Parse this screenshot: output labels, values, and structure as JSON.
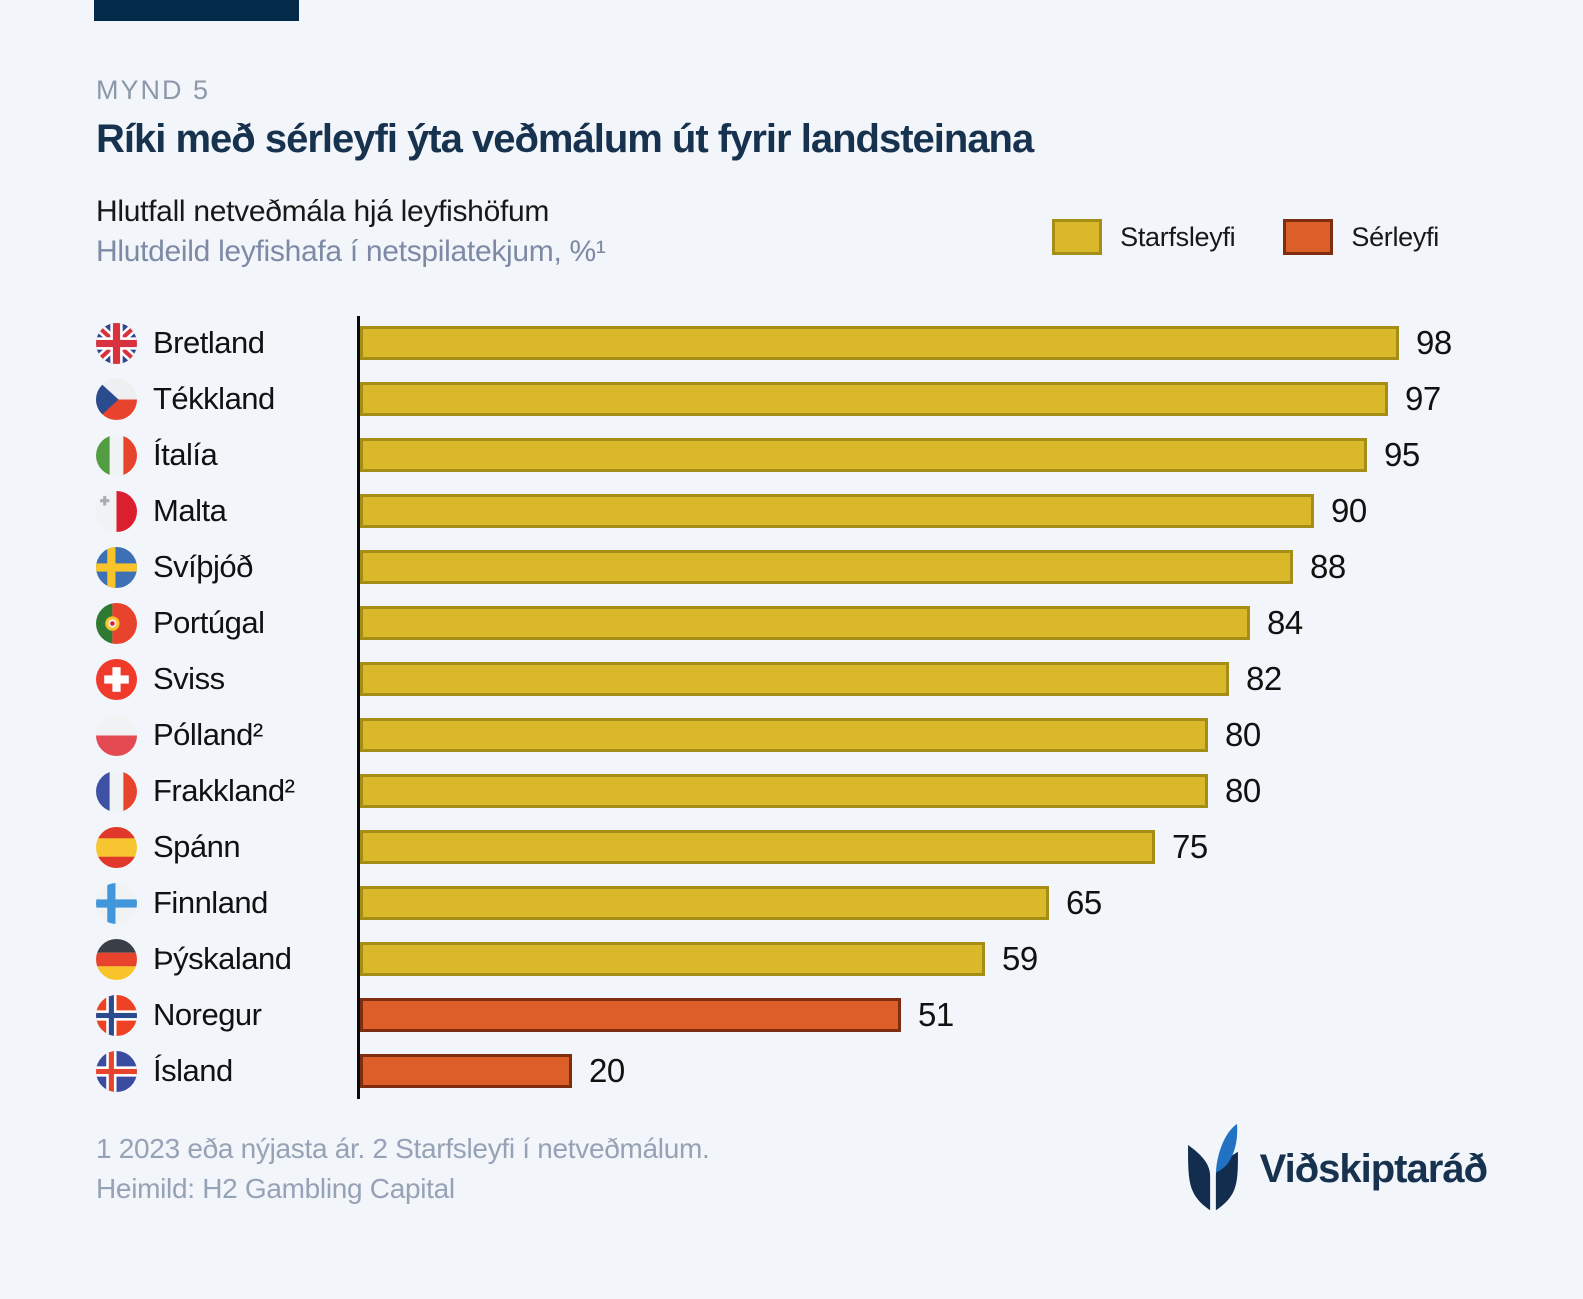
{
  "header": {
    "kicker": "MYND 5",
    "title": "Ríki með sérleyfi ýta veðmálum út fyrir landsteinana",
    "subtitle_primary": "Hlutfall netveðmála hjá leyfishöfum",
    "subtitle_secondary": "Hlutdeild leyfishafa í netspilatekjum, %¹"
  },
  "legend": [
    {
      "label": "Starfsleyfi",
      "series": "starfsleyfi",
      "fill": "#D9B929",
      "border": "#A58E18"
    },
    {
      "label": "Sérleyfi",
      "series": "serleyfi",
      "fill": "#DC5E28",
      "border": "#7E2D10"
    }
  ],
  "chart_data": {
    "type": "bar",
    "orientation": "horizontal",
    "unit": "%",
    "xlim": [
      0,
      100
    ],
    "title": "Ríki með sérleyfi ýta veðmálum út fyrir landsteinana",
    "subtitle": "Hlutdeild leyfishafa í netspilatekjum, %",
    "categories": [
      "Bretland",
      "Tékkland",
      "Ítalía",
      "Malta",
      "Svíþjóð",
      "Portúgal",
      "Sviss",
      "Pólland²",
      "Frakkland²",
      "Spánn",
      "Finnland",
      "Þýskaland",
      "Noregur",
      "Ísland"
    ],
    "values": [
      98,
      97,
      95,
      90,
      88,
      84,
      82,
      80,
      80,
      75,
      65,
      59,
      51,
      20
    ],
    "rows": [
      {
        "country": "Bretland",
        "flag": "gb",
        "value": 98,
        "series": "starfsleyfi"
      },
      {
        "country": "Tékkland",
        "flag": "cz",
        "value": 97,
        "series": "starfsleyfi"
      },
      {
        "country": "Ítalía",
        "flag": "it",
        "value": 95,
        "series": "starfsleyfi"
      },
      {
        "country": "Malta",
        "flag": "mt",
        "value": 90,
        "series": "starfsleyfi"
      },
      {
        "country": "Svíþjóð",
        "flag": "se",
        "value": 88,
        "series": "starfsleyfi"
      },
      {
        "country": "Portúgal",
        "flag": "pt",
        "value": 84,
        "series": "starfsleyfi"
      },
      {
        "country": "Sviss",
        "flag": "ch",
        "value": 82,
        "series": "starfsleyfi"
      },
      {
        "country": "Pólland²",
        "flag": "pl",
        "value": 80,
        "series": "starfsleyfi"
      },
      {
        "country": "Frakkland²",
        "flag": "fr",
        "value": 80,
        "series": "starfsleyfi"
      },
      {
        "country": "Spánn",
        "flag": "es",
        "value": 75,
        "series": "starfsleyfi"
      },
      {
        "country": "Finnland",
        "flag": "fi",
        "value": 65,
        "series": "starfsleyfi"
      },
      {
        "country": "Þýskaland",
        "flag": "de",
        "value": 59,
        "series": "starfsleyfi"
      },
      {
        "country": "Noregur",
        "flag": "no",
        "value": 51,
        "series": "serleyfi"
      },
      {
        "country": "Ísland",
        "flag": "is",
        "value": 20,
        "series": "serleyfi"
      }
    ]
  },
  "footer": {
    "note1": "1 2023 eða nýjasta ár. 2 Starfsleyfi í netveðmálum.",
    "note2": "Heimild: H2 Gambling Capital",
    "logo_text": "Viðskiptaráð"
  },
  "colors": {
    "background": "#F2F5F9",
    "accent_bar": "#032A49",
    "title": "#16324F",
    "muted_text": "#8D98AB",
    "footnote_text": "#96A2B5",
    "axis": "#0A0A0A",
    "starfsleyfi_fill": "#D9B929",
    "starfsleyfi_border": "#A58E18",
    "serleyfi_fill": "#DC5E28",
    "serleyfi_border": "#7E2D10",
    "logo_navy": "#122D4E",
    "logo_blue": "#2272C3"
  }
}
